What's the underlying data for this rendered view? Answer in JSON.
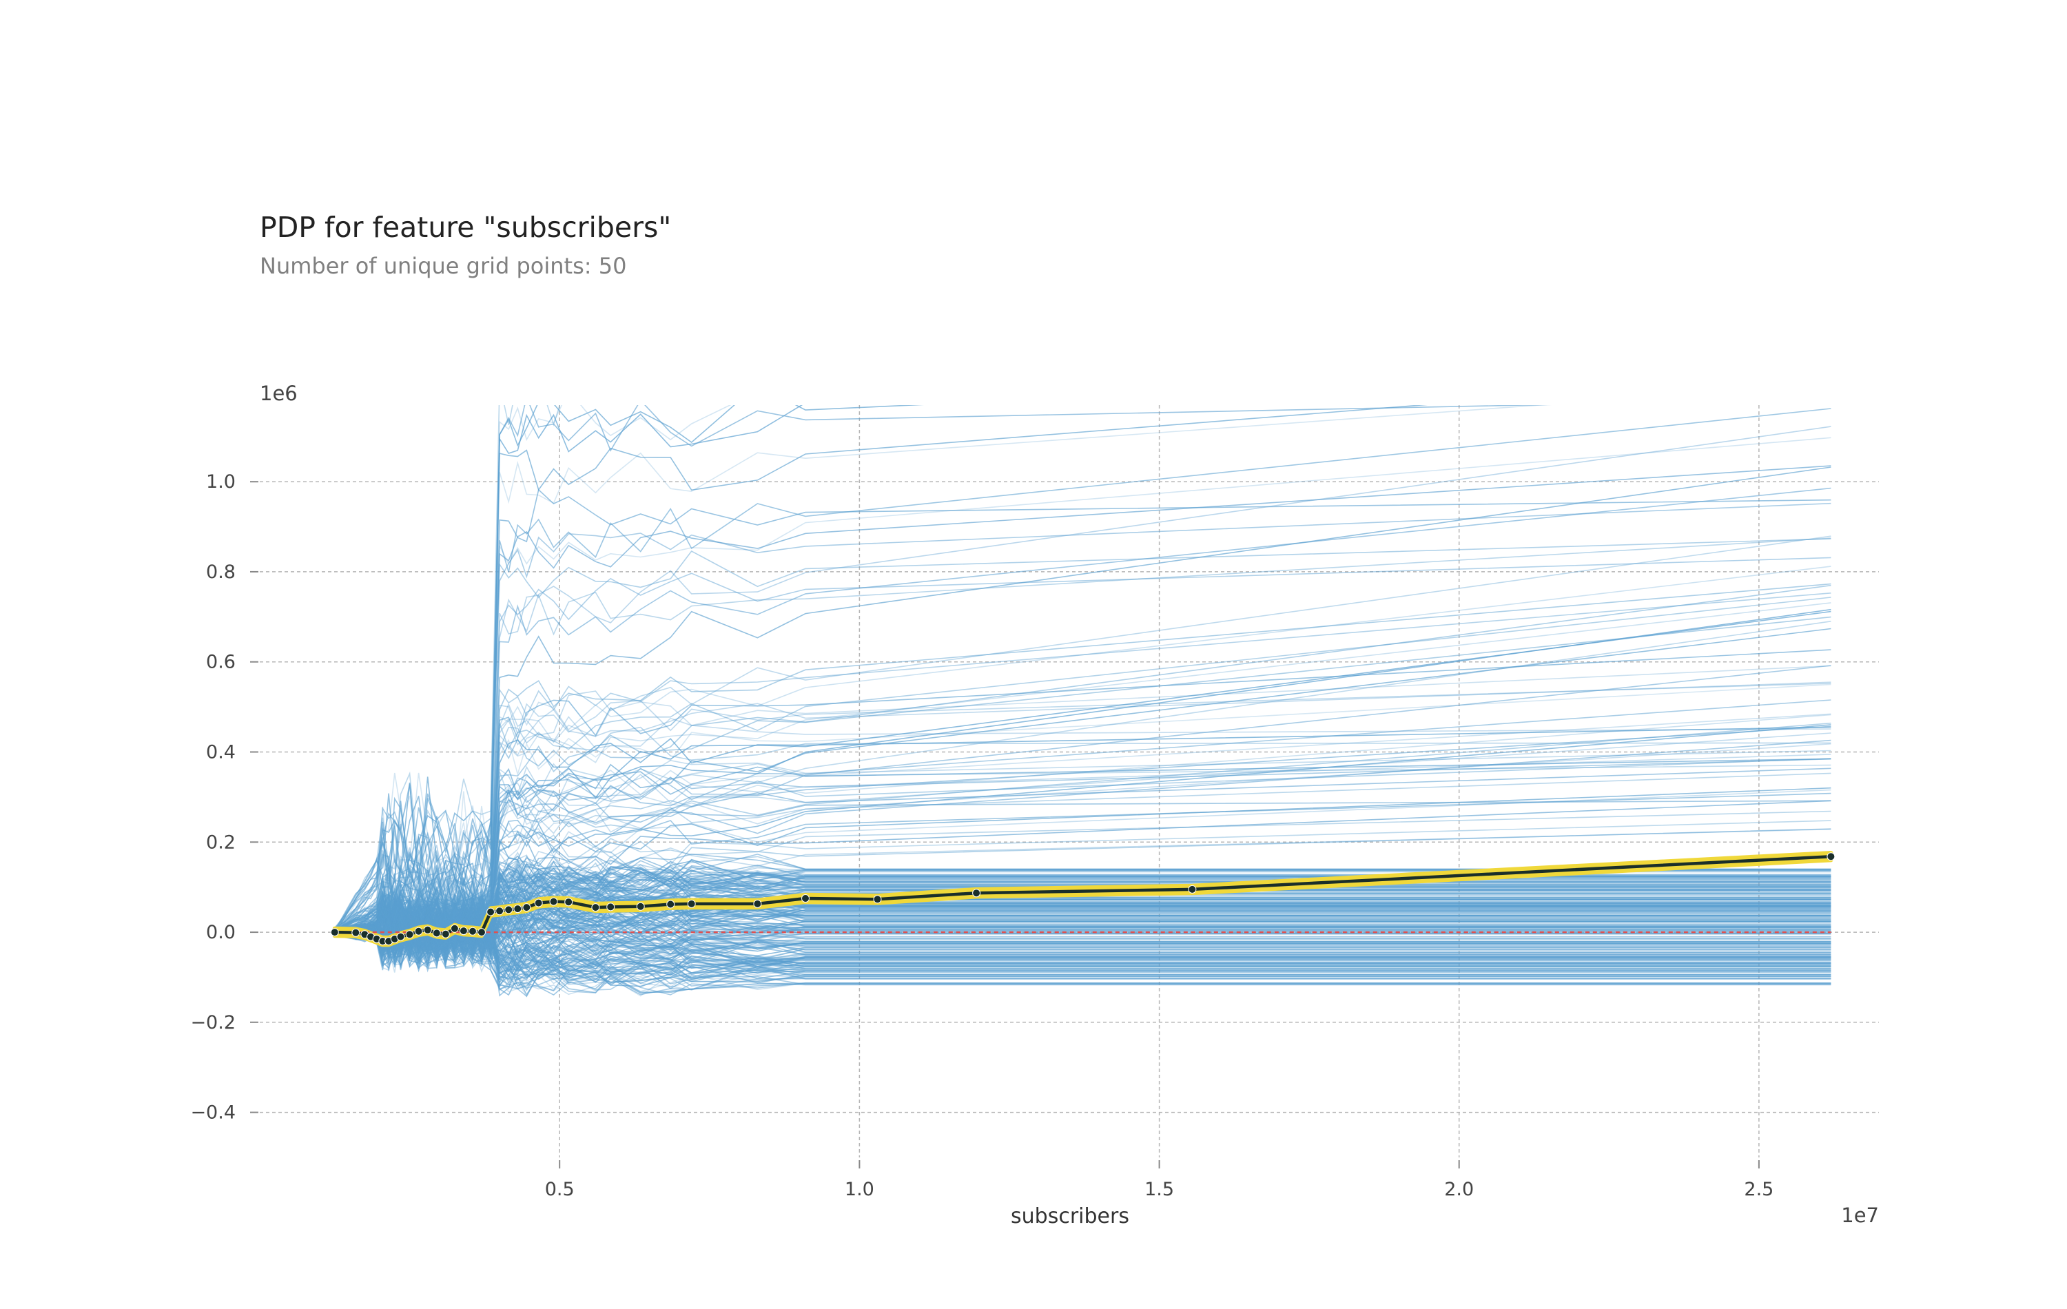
{
  "title": "PDP for feature \"subscribers\"",
  "subtitle": "Number of unique grid points: 50",
  "chart_data": {
    "type": "line",
    "title": "PDP for feature \"subscribers\"",
    "subtitle": "Number of unique grid points: 50",
    "xlabel": "subscribers",
    "ylabel": "",
    "x_offset_label": "1e7",
    "y_offset_label": "1e6",
    "x_scale": 10000000,
    "y_scale": 1000000,
    "xlim": [
      0,
      27000000
    ],
    "ylim": [
      -0.5,
      1.17
    ],
    "xticks": [
      5000000,
      10000000,
      15000000,
      20000000,
      25000000
    ],
    "xtick_labels": [
      "0.5",
      "1.0",
      "1.5",
      "2.0",
      "2.5"
    ],
    "yticks": [
      -0.4,
      -0.2,
      0.0,
      0.2,
      0.4,
      0.6,
      0.8,
      1.0
    ],
    "ytick_labels": [
      "−0.4",
      "−0.2",
      "0.0",
      "0.2",
      "0.4",
      "0.6",
      "0.8",
      "1.0"
    ],
    "grid": true,
    "colors": {
      "pdp_line": "#1a2e2a",
      "pdp_band": "#f0d83a",
      "ice_lines": "#5a9fd0",
      "baseline": "#e05050",
      "grid": "#b5b5b5"
    },
    "series": [
      {
        "name": "",
        "style": "pdp",
        "x": [
          1250000,
          1600000,
          1750000,
          1850000,
          1950000,
          2050000,
          2150000,
          2250000,
          2350000,
          2500000,
          2650000,
          2800000,
          2950000,
          3100000,
          3250000,
          3400000,
          3550000,
          3700000,
          3850000,
          4000000,
          4150000,
          4300000,
          4450000,
          4650000,
          4900000,
          5150000,
          5600000,
          5850000,
          6350000,
          6850000,
          7200000,
          8300000,
          9100000,
          10300000,
          11950000,
          15550000,
          26200000
        ],
        "y": [
          0.0,
          -0.001,
          -0.005,
          -0.01,
          -0.015,
          -0.02,
          -0.02,
          -0.015,
          -0.01,
          -0.005,
          0.002,
          0.005,
          -0.002,
          -0.004,
          0.008,
          0.003,
          0.002,
          0.0,
          0.045,
          0.047,
          0.05,
          0.052,
          0.055,
          0.065,
          0.068,
          0.067,
          0.055,
          0.056,
          0.057,
          0.062,
          0.063,
          0.063,
          0.075,
          0.073,
          0.087,
          0.095,
          0.168
        ],
        "band_half_width": 0.008
      },
      {
        "name": "",
        "style": "baseline",
        "x": [
          1250000,
          26200000
        ],
        "y": [
          0.0,
          0.0
        ]
      }
    ],
    "ice_summary": {
      "curve_count": 300,
      "x_start": 1250000,
      "x_end": 26200000,
      "final_value_range": [
        -0.15,
        1.17
      ],
      "early_spike_x": 3900000
    }
  }
}
